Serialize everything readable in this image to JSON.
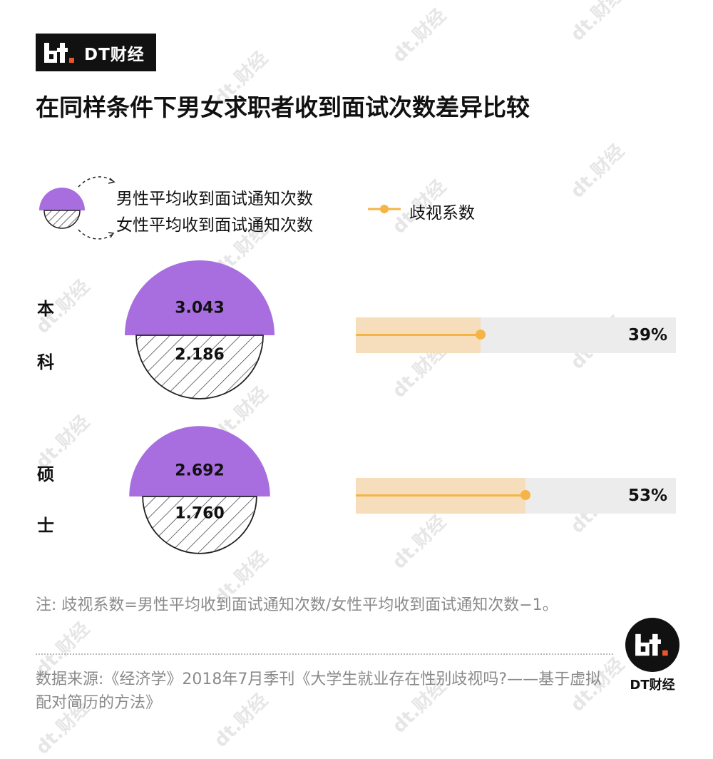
{
  "brand": {
    "name": "DT财经",
    "footer_name": "DT财经",
    "watermark": "dt.财经"
  },
  "title": "在同样条件下男女求职者收到面试次数差异比较",
  "legend": {
    "male": "男性平均收到面试通知次数",
    "female": "女性平均收到面试通知次数",
    "discrimination": "歧视系数"
  },
  "colors": {
    "male": "#a86ee0",
    "bar_track": "#ececec",
    "bar_fill": "#f6ddbb",
    "line": "#f5b445"
  },
  "chart_data": {
    "type": "bar",
    "title": "在同样条件下男女求职者收到面试次数差异比较",
    "categories": [
      "本科",
      "硕士"
    ],
    "category_labels": [
      [
        "本",
        "科"
      ],
      [
        "硕",
        "士"
      ]
    ],
    "series": [
      {
        "name": "男性平均收到面试通知次数",
        "values": [
          3.043,
          2.692
        ]
      },
      {
        "name": "女性平均收到面试通知次数",
        "values": [
          2.186,
          1.76
        ]
      },
      {
        "name": "歧视系数",
        "values": [
          0.39,
          0.53
        ]
      }
    ],
    "value_labels": {
      "male": [
        "3.043",
        "2.692"
      ],
      "female": [
        "2.186",
        "1.760"
      ],
      "discrimination": [
        "39%",
        "53%"
      ]
    }
  },
  "note": "注: 歧视系数=男性平均收到面试通知次数/女性平均收到面试通知次数−1。",
  "source": "数据来源:《经济学》2018年7月季刊《大学生就业存在性别歧视吗?——基于虚拟配对简历的方法》"
}
